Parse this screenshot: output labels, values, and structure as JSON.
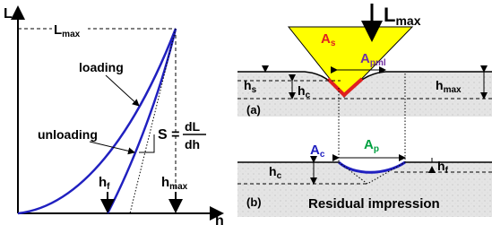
{
  "graph": {
    "y_axis_label": "L",
    "x_axis_label": "h",
    "l_max": {
      "main": "L",
      "sub": "max"
    },
    "loading": "loading",
    "unloading": "unloading",
    "stiffness": {
      "symbol": "S =",
      "numerator": "dL",
      "denominator": "dh"
    },
    "h_f": {
      "main": "h",
      "sub": "f"
    },
    "h_max": {
      "main": "h",
      "sub": "max"
    }
  },
  "panel_a": {
    "label": "(a)",
    "load": {
      "main": "L",
      "sub": "max"
    },
    "a_s": {
      "main": "A",
      "sub": "s"
    },
    "a_pml": {
      "main": "A",
      "sub": "pml"
    },
    "h_s": {
      "main": "h",
      "sub": "s"
    },
    "h_c": {
      "main": "h",
      "sub": "c"
    },
    "h_max": {
      "main": "h",
      "sub": "max"
    }
  },
  "panel_b": {
    "label": "(b)",
    "a_c": {
      "main": "A",
      "sub": "c"
    },
    "a_p": {
      "main": "A",
      "sub": "p"
    },
    "h_c": {
      "main": "h",
      "sub": "c"
    },
    "h_f": {
      "main": "h",
      "sub": "f"
    },
    "caption": "Residual impression"
  }
}
